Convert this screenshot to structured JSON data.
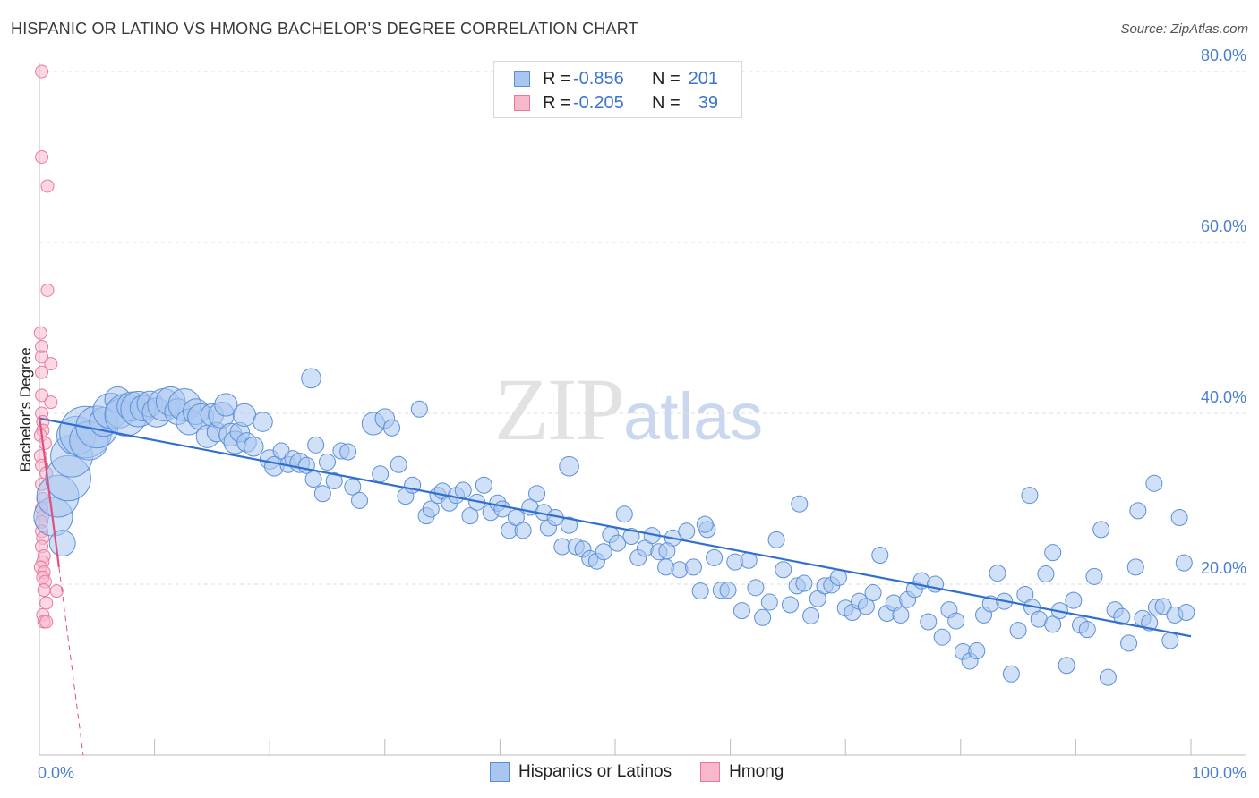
{
  "header": {
    "title": "HISPANIC OR LATINO VS HMONG BACHELOR'S DEGREE CORRELATION CHART",
    "source": "Source: ZipAtlas.com"
  },
  "watermark": {
    "zip": "ZIP",
    "atlas": "atlas"
  },
  "legend": {
    "rows": [
      {
        "r_label": "R =",
        "r_value": "-0.856",
        "n_label": "N =",
        "n_value": "201"
      },
      {
        "r_label": "R =",
        "r_value": "-0.205",
        "n_label": "N =",
        "n_value": "39"
      }
    ]
  },
  "colors": {
    "blue_fill": "#a9c6f0",
    "blue_stroke": "#5b8fd8",
    "blue_line": "#2f6fd0",
    "pink_fill": "#f7b8cb",
    "pink_stroke": "#e8799d",
    "pink_line": "#e0507f",
    "grid": "#dedede",
    "axis": "#bbbbbb"
  },
  "chart_data": {
    "type": "scatter",
    "title": "HISPANIC OR LATINO VS HMONG BACHELOR'S DEGREE CORRELATION CHART",
    "xlabel": "",
    "ylabel": "Bachelor's Degree",
    "xlim": [
      0,
      100
    ],
    "ylim": [
      0,
      80
    ],
    "x_tick_labels": [
      "0.0%",
      "100.0%"
    ],
    "y_ticks": [
      20,
      40,
      60,
      80
    ],
    "y_tick_labels": [
      "20.0%",
      "40.0%",
      "60.0%",
      "80.0%"
    ],
    "grid": true,
    "legend": [
      "Hispanics or Latinos",
      "Hmong"
    ],
    "series": [
      {
        "name": "Hispanics or Latinos",
        "r": -0.856,
        "n": 201,
        "trend": {
          "x": [
            0,
            100
          ],
          "y": [
            39.4,
            13.9
          ]
        },
        "points": [
          [
            1.2,
            27.9,
            2.4
          ],
          [
            1.6,
            30.3,
            2.6
          ],
          [
            2.0,
            24.8,
            1.6
          ],
          [
            2.5,
            32.4,
            2.8
          ],
          [
            2.8,
            35.0,
            2.6
          ],
          [
            3.2,
            37.4,
            2.4
          ],
          [
            4.0,
            37.8,
            3.2
          ],
          [
            4.3,
            36.8,
            2.4
          ],
          [
            5.0,
            38.4,
            2.6
          ],
          [
            5.6,
            39.0,
            1.8
          ],
          [
            6.2,
            40.3,
            2.2
          ],
          [
            6.8,
            41.6,
            1.6
          ],
          [
            7.0,
            40.0,
            1.8
          ],
          [
            7.5,
            39.8,
            2.6
          ],
          [
            8.0,
            40.8,
            1.8
          ],
          [
            8.6,
            40.5,
            2.2
          ],
          [
            9.0,
            40.6,
            1.6
          ],
          [
            9.6,
            41.1,
            1.6
          ],
          [
            10.2,
            40.1,
            1.8
          ],
          [
            10.8,
            41.0,
            2.0
          ],
          [
            11.4,
            41.4,
            1.8
          ],
          [
            12.0,
            40.2,
            1.6
          ],
          [
            12.6,
            41.0,
            2.0
          ],
          [
            13.0,
            39.0,
            1.6
          ],
          [
            13.6,
            40.2,
            1.6
          ],
          [
            14.0,
            39.6,
            1.6
          ],
          [
            14.6,
            37.3,
            1.4
          ],
          [
            15.0,
            39.8,
            1.4
          ],
          [
            15.4,
            37.8,
            1.2
          ],
          [
            15.8,
            39.8,
            1.6
          ],
          [
            16.2,
            41.0,
            1.4
          ],
          [
            16.6,
            37.5,
            1.4
          ],
          [
            17.0,
            36.6,
            1.4
          ],
          [
            17.4,
            37.8,
            1.2
          ],
          [
            17.8,
            39.8,
            1.4
          ],
          [
            18.0,
            36.6,
            1.2
          ],
          [
            18.6,
            36.1,
            1.2
          ],
          [
            19.4,
            39.0,
            1.2
          ],
          [
            20.0,
            34.6,
            1.2
          ],
          [
            20.4,
            33.8,
            1.2
          ],
          [
            21.0,
            35.6,
            1.0
          ],
          [
            21.6,
            34.0,
            1.0
          ],
          [
            22.0,
            34.7,
            1.0
          ],
          [
            22.6,
            34.2,
            1.2
          ],
          [
            23.2,
            33.9,
            1.0
          ],
          [
            23.8,
            32.3,
            1.0
          ],
          [
            24.0,
            36.3,
            1.0
          ],
          [
            24.6,
            30.6,
            1.0
          ],
          [
            25.0,
            34.3,
            1.0
          ],
          [
            25.6,
            32.1,
            1.0
          ],
          [
            26.2,
            35.6,
            1.0
          ],
          [
            26.8,
            35.5,
            1.0
          ],
          [
            27.2,
            31.4,
            1.0
          ],
          [
            27.8,
            29.8,
            1.0
          ],
          [
            29.0,
            38.8,
            1.4
          ],
          [
            29.6,
            32.9,
            1.0
          ],
          [
            30.0,
            39.4,
            1.2
          ],
          [
            30.6,
            38.3,
            1.0
          ],
          [
            31.2,
            34.0,
            1.0
          ],
          [
            31.8,
            30.3,
            1.0
          ],
          [
            32.4,
            31.6,
            1.0
          ],
          [
            33.0,
            40.5,
            1.0
          ],
          [
            33.6,
            28.0,
            1.0
          ],
          [
            34.0,
            28.8,
            1.0
          ],
          [
            34.6,
            30.4,
            1.0
          ],
          [
            35.0,
            30.9,
            1.0
          ],
          [
            35.6,
            29.5,
            1.0
          ],
          [
            36.2,
            30.4,
            1.0
          ],
          [
            36.8,
            31.0,
            1.0
          ],
          [
            37.4,
            28.0,
            1.0
          ],
          [
            38.0,
            29.6,
            1.0
          ],
          [
            38.6,
            31.6,
            1.0
          ],
          [
            39.2,
            28.4,
            1.0
          ],
          [
            39.8,
            29.5,
            1.0
          ],
          [
            40.2,
            28.8,
            1.0
          ],
          [
            40.8,
            26.3,
            1.0
          ],
          [
            41.4,
            27.8,
            1.0
          ],
          [
            42.0,
            26.3,
            1.0
          ],
          [
            42.6,
            29.0,
            1.0
          ],
          [
            43.2,
            30.6,
            1.0
          ],
          [
            43.8,
            28.4,
            1.0
          ],
          [
            44.2,
            26.6,
            1.0
          ],
          [
            44.8,
            27.8,
            1.0
          ],
          [
            45.4,
            24.4,
            1.0
          ],
          [
            46.0,
            26.9,
            1.0
          ],
          [
            46.6,
            24.4,
            1.0
          ],
          [
            47.2,
            24.1,
            1.0
          ],
          [
            47.8,
            23.0,
            1.0
          ],
          [
            48.4,
            22.7,
            1.0
          ],
          [
            49.0,
            23.8,
            1.0
          ],
          [
            49.6,
            25.8,
            1.0
          ],
          [
            50.2,
            24.8,
            1.0
          ],
          [
            50.8,
            28.2,
            1.0
          ],
          [
            51.4,
            25.6,
            1.0
          ],
          [
            52.0,
            23.1,
            1.0
          ],
          [
            52.6,
            24.2,
            1.0
          ],
          [
            53.2,
            25.7,
            1.0
          ],
          [
            53.8,
            23.8,
            1.0
          ],
          [
            54.4,
            22.0,
            1.0
          ],
          [
            55.0,
            25.4,
            1.0
          ],
          [
            55.6,
            21.7,
            1.0
          ],
          [
            56.2,
            26.2,
            1.0
          ],
          [
            56.8,
            22.0,
            1.0
          ],
          [
            57.4,
            19.2,
            1.0
          ],
          [
            58.0,
            26.4,
            1.0
          ],
          [
            58.6,
            23.1,
            1.0
          ],
          [
            59.2,
            19.3,
            1.0
          ],
          [
            59.8,
            19.3,
            1.0
          ],
          [
            60.4,
            22.6,
            1.0
          ],
          [
            61.0,
            16.9,
            1.0
          ],
          [
            61.6,
            22.8,
            1.0
          ],
          [
            62.2,
            19.6,
            1.0
          ],
          [
            62.8,
            16.1,
            1.0
          ],
          [
            63.4,
            17.9,
            1.0
          ],
          [
            64.0,
            25.2,
            1.0
          ],
          [
            64.6,
            21.7,
            1.0
          ],
          [
            65.2,
            17.6,
            1.0
          ],
          [
            65.8,
            19.8,
            1.0
          ],
          [
            66.4,
            20.1,
            1.0
          ],
          [
            67.0,
            16.3,
            1.0
          ],
          [
            67.6,
            18.3,
            1.0
          ],
          [
            68.2,
            19.8,
            1.0
          ],
          [
            68.8,
            19.9,
            1.0
          ],
          [
            69.4,
            20.8,
            1.0
          ],
          [
            70.0,
            17.2,
            1.0
          ],
          [
            70.6,
            16.7,
            1.0
          ],
          [
            71.2,
            18.0,
            1.0
          ],
          [
            71.8,
            17.4,
            1.0
          ],
          [
            72.4,
            19.0,
            1.0
          ],
          [
            73.0,
            23.4,
            1.0
          ],
          [
            73.6,
            16.6,
            1.0
          ],
          [
            74.2,
            17.8,
            1.0
          ],
          [
            74.8,
            16.4,
            1.0
          ],
          [
            75.4,
            18.2,
            1.0
          ],
          [
            76.0,
            19.4,
            1.0
          ],
          [
            76.6,
            20.4,
            1.0
          ],
          [
            77.2,
            15.6,
            1.0
          ],
          [
            77.8,
            20.0,
            1.0
          ],
          [
            78.4,
            13.8,
            1.0
          ],
          [
            79.0,
            17.0,
            1.0
          ],
          [
            79.6,
            15.7,
            1.0
          ],
          [
            80.2,
            12.1,
            1.0
          ],
          [
            80.8,
            11.0,
            1.0
          ],
          [
            81.4,
            12.2,
            1.0
          ],
          [
            82.0,
            16.4,
            1.0
          ],
          [
            82.6,
            17.7,
            1.0
          ],
          [
            83.2,
            21.3,
            1.0
          ],
          [
            83.8,
            18.0,
            1.0
          ],
          [
            84.4,
            9.5,
            1.0
          ],
          [
            85.0,
            14.6,
            1.0
          ],
          [
            85.6,
            18.8,
            1.0
          ],
          [
            86.2,
            17.3,
            1.0
          ],
          [
            86.8,
            15.9,
            1.0
          ],
          [
            87.4,
            21.2,
            1.0
          ],
          [
            88.0,
            15.3,
            1.0
          ],
          [
            88.6,
            16.9,
            1.0
          ],
          [
            89.2,
            10.5,
            1.0
          ],
          [
            89.8,
            18.1,
            1.0
          ],
          [
            90.4,
            15.2,
            1.0
          ],
          [
            91.0,
            14.7,
            1.0
          ],
          [
            91.6,
            20.9,
            1.0
          ],
          [
            92.2,
            26.4,
            1.0
          ],
          [
            92.8,
            9.1,
            1.0
          ],
          [
            93.4,
            17.0,
            1.0
          ],
          [
            94.0,
            16.2,
            1.0
          ],
          [
            94.6,
            13.1,
            1.0
          ],
          [
            95.2,
            22.0,
            1.0
          ],
          [
            95.8,
            16.0,
            1.0
          ],
          [
            96.4,
            15.5,
            1.0
          ],
          [
            97.0,
            17.3,
            1.0
          ],
          [
            97.6,
            17.4,
            1.0
          ],
          [
            98.2,
            13.4,
            1.0
          ],
          [
            98.6,
            16.4,
            1.0
          ],
          [
            99.0,
            27.8,
            1.0
          ],
          [
            99.4,
            22.5,
            1.0
          ],
          [
            99.6,
            16.7,
            1.0
          ],
          [
            86.0,
            30.4,
            1.0
          ],
          [
            96.8,
            31.8,
            1.0
          ],
          [
            95.4,
            28.6,
            1.0
          ],
          [
            23.6,
            44.1,
            1.2
          ],
          [
            46.0,
            33.8,
            1.2
          ],
          [
            57.8,
            27.0,
            1.0
          ],
          [
            66.0,
            29.4,
            1.0
          ],
          [
            54.5,
            23.9,
            1.0
          ],
          [
            88.0,
            23.7,
            1.0
          ]
        ]
      },
      {
        "name": "Hmong",
        "r": -0.205,
        "n": 39,
        "trend": {
          "x": [
            0,
            1.7
          ],
          "y": [
            39.6,
            22.0
          ],
          "dashed_extension": {
            "x": [
              1.7,
              3.8
            ],
            "y": [
              22.0,
              0
            ]
          }
        },
        "points": [
          [
            0.2,
            80.0
          ],
          [
            0.2,
            70.0
          ],
          [
            0.7,
            66.6
          ],
          [
            0.7,
            54.4
          ],
          [
            0.1,
            49.4
          ],
          [
            0.2,
            47.8
          ],
          [
            0.2,
            46.6
          ],
          [
            1.0,
            45.8
          ],
          [
            0.2,
            44.8
          ],
          [
            0.2,
            42.1
          ],
          [
            1.0,
            41.3
          ],
          [
            0.2,
            40.0
          ],
          [
            0.3,
            39.0
          ],
          [
            0.3,
            38.0
          ],
          [
            0.1,
            37.4
          ],
          [
            0.5,
            36.5
          ],
          [
            0.1,
            35.0
          ],
          [
            0.2,
            33.9
          ],
          [
            0.6,
            33.0
          ],
          [
            0.2,
            31.7
          ],
          [
            0.3,
            30.0
          ],
          [
            0.2,
            28.9
          ],
          [
            0.3,
            28.0
          ],
          [
            0.2,
            27.3
          ],
          [
            0.2,
            26.2
          ],
          [
            0.3,
            25.4
          ],
          [
            0.2,
            24.4
          ],
          [
            0.4,
            23.3
          ],
          [
            0.3,
            22.6
          ],
          [
            0.1,
            22.0
          ],
          [
            0.4,
            21.4
          ],
          [
            0.3,
            20.8
          ],
          [
            0.5,
            20.3
          ],
          [
            0.4,
            19.3
          ],
          [
            1.5,
            19.2
          ],
          [
            0.6,
            17.8
          ],
          [
            0.3,
            16.4
          ],
          [
            0.4,
            15.6
          ],
          [
            0.6,
            15.6
          ]
        ]
      }
    ]
  },
  "bottom_legend": {
    "items": [
      "Hispanics or Latinos",
      "Hmong"
    ]
  }
}
